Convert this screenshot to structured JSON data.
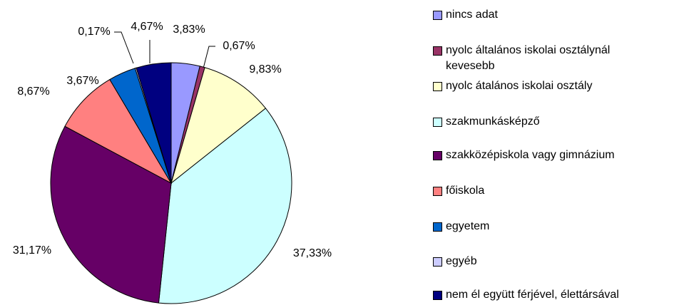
{
  "chart_data": {
    "type": "pie",
    "categories": [
      "nincs adat",
      "nyolc általános iskolai osztálynál kevesebb",
      "nyolc átalános iskolai osztály",
      "szakmunkásképző",
      "szakközépiskola vagy gimnázium",
      "főiskola",
      "egyetem",
      "egyéb",
      "nem él együtt férjével, élettársával"
    ],
    "values": [
      3.83,
      0.67,
      9.83,
      37.33,
      31.17,
      8.67,
      3.67,
      0.17,
      4.67
    ],
    "value_labels": [
      "3,83%",
      "0,67%",
      "9,83%",
      "37,33%",
      "31,17%",
      "8,67%",
      "3,67%",
      "0,17%",
      "4,67%"
    ],
    "colors": [
      "#9999FF",
      "#993366",
      "#FFFFCC",
      "#CCFFFF",
      "#660066",
      "#FF8080",
      "#0066CC",
      "#CCCCFF",
      "#000080"
    ]
  }
}
